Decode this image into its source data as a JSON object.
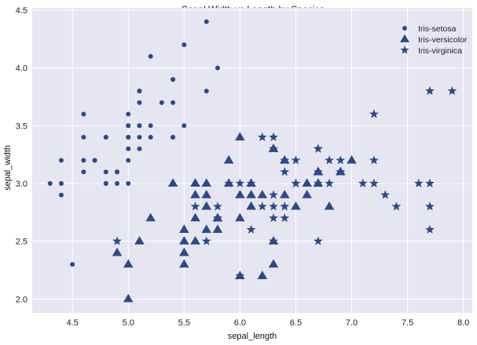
{
  "chart_data": {
    "type": "scatter",
    "title": "Sepal Width vs Length by Species",
    "xlabel": "sepal_length",
    "ylabel": "sepal_width",
    "xlim": [
      4.14,
      8.08
    ],
    "ylim": [
      1.88,
      4.52
    ],
    "xticks": [
      "4.5",
      "5.0",
      "5.5",
      "6.0",
      "6.5",
      "7.0",
      "7.5",
      "8.0"
    ],
    "xtick_values": [
      4.5,
      5.0,
      5.5,
      6.0,
      6.5,
      7.0,
      7.5,
      8.0
    ],
    "yticks": [
      "2.0",
      "2.5",
      "3.0",
      "3.5",
      "4.0",
      "4.5"
    ],
    "ytick_values": [
      2.0,
      2.5,
      3.0,
      3.5,
      4.0,
      4.5
    ],
    "grid": true,
    "legend_position": "top-right",
    "colors": {
      "marker": "#2a4a8a",
      "plot_background": "#e6e6f0",
      "grid": "#ffffff"
    },
    "series": [
      {
        "name": "Iris-setosa",
        "marker": "circle",
        "points": [
          [
            5.1,
            3.5
          ],
          [
            4.9,
            3.0
          ],
          [
            4.7,
            3.2
          ],
          [
            4.6,
            3.1
          ],
          [
            5.0,
            3.6
          ],
          [
            5.4,
            3.9
          ],
          [
            4.6,
            3.4
          ],
          [
            5.0,
            3.4
          ],
          [
            4.4,
            2.9
          ],
          [
            4.9,
            3.1
          ],
          [
            5.4,
            3.7
          ],
          [
            4.8,
            3.4
          ],
          [
            4.8,
            3.0
          ],
          [
            4.3,
            3.0
          ],
          [
            5.8,
            4.0
          ],
          [
            5.7,
            4.4
          ],
          [
            5.4,
            3.9
          ],
          [
            5.1,
            3.5
          ],
          [
            5.7,
            3.8
          ],
          [
            5.1,
            3.8
          ],
          [
            5.4,
            3.4
          ],
          [
            5.1,
            3.7
          ],
          [
            4.6,
            3.6
          ],
          [
            5.1,
            3.3
          ],
          [
            4.8,
            3.4
          ],
          [
            5.0,
            3.0
          ],
          [
            5.0,
            3.4
          ],
          [
            5.2,
            3.5
          ],
          [
            5.2,
            3.4
          ],
          [
            4.7,
            3.2
          ],
          [
            4.8,
            3.1
          ],
          [
            5.4,
            3.4
          ],
          [
            5.2,
            4.1
          ],
          [
            5.5,
            4.2
          ],
          [
            4.9,
            3.1
          ],
          [
            5.0,
            3.2
          ],
          [
            5.5,
            3.5
          ],
          [
            4.9,
            3.1
          ],
          [
            4.4,
            3.0
          ],
          [
            5.1,
            3.4
          ],
          [
            5.0,
            3.5
          ],
          [
            4.5,
            2.3
          ],
          [
            4.4,
            3.2
          ],
          [
            5.0,
            3.5
          ],
          [
            5.1,
            3.8
          ],
          [
            4.8,
            3.0
          ],
          [
            5.1,
            3.8
          ],
          [
            4.6,
            3.2
          ],
          [
            5.3,
            3.7
          ],
          [
            5.0,
            3.3
          ]
        ]
      },
      {
        "name": "Iris-versicolor",
        "marker": "triangle",
        "points": [
          [
            7.0,
            3.2
          ],
          [
            6.4,
            3.2
          ],
          [
            6.9,
            3.1
          ],
          [
            5.5,
            2.3
          ],
          [
            6.5,
            2.8
          ],
          [
            5.7,
            2.8
          ],
          [
            6.3,
            3.3
          ],
          [
            4.9,
            2.4
          ],
          [
            6.6,
            2.9
          ],
          [
            5.2,
            2.7
          ],
          [
            5.0,
            2.0
          ],
          [
            5.9,
            3.0
          ],
          [
            6.0,
            2.2
          ],
          [
            6.1,
            2.9
          ],
          [
            5.6,
            2.9
          ],
          [
            6.7,
            3.1
          ],
          [
            5.6,
            3.0
          ],
          [
            5.8,
            2.7
          ],
          [
            6.2,
            2.2
          ],
          [
            5.6,
            2.5
          ],
          [
            5.9,
            3.2
          ],
          [
            6.1,
            2.8
          ],
          [
            6.3,
            2.5
          ],
          [
            6.1,
            2.8
          ],
          [
            6.4,
            2.9
          ],
          [
            6.6,
            3.0
          ],
          [
            6.8,
            2.8
          ],
          [
            6.7,
            3.0
          ],
          [
            6.0,
            2.9
          ],
          [
            5.7,
            2.6
          ],
          [
            5.5,
            2.4
          ],
          [
            5.5,
            2.4
          ],
          [
            5.8,
            2.7
          ],
          [
            6.0,
            2.7
          ],
          [
            5.4,
            3.0
          ],
          [
            6.0,
            3.4
          ],
          [
            6.7,
            3.1
          ],
          [
            6.3,
            2.3
          ],
          [
            5.6,
            3.0
          ],
          [
            5.5,
            2.5
          ],
          [
            5.5,
            2.6
          ],
          [
            6.1,
            3.0
          ],
          [
            5.8,
            2.6
          ],
          [
            5.0,
            2.3
          ],
          [
            5.6,
            2.7
          ],
          [
            5.7,
            3.0
          ],
          [
            5.7,
            2.9
          ],
          [
            6.2,
            2.9
          ],
          [
            5.1,
            2.5
          ],
          [
            5.7,
            2.8
          ]
        ]
      },
      {
        "name": "Iris-virginica",
        "marker": "star",
        "points": [
          [
            6.3,
            3.3
          ],
          [
            5.8,
            2.7
          ],
          [
            7.1,
            3.0
          ],
          [
            6.3,
            2.9
          ],
          [
            6.5,
            3.0
          ],
          [
            7.6,
            3.0
          ],
          [
            4.9,
            2.5
          ],
          [
            7.3,
            2.9
          ],
          [
            6.7,
            2.5
          ],
          [
            7.2,
            3.6
          ],
          [
            6.5,
            3.2
          ],
          [
            6.4,
            2.7
          ],
          [
            6.8,
            3.0
          ],
          [
            5.7,
            2.5
          ],
          [
            5.8,
            2.8
          ],
          [
            6.4,
            3.2
          ],
          [
            6.5,
            3.0
          ],
          [
            7.7,
            3.8
          ],
          [
            7.7,
            2.6
          ],
          [
            6.0,
            2.2
          ],
          [
            6.9,
            3.2
          ],
          [
            5.6,
            2.8
          ],
          [
            7.7,
            2.8
          ],
          [
            6.3,
            2.7
          ],
          [
            6.7,
            3.3
          ],
          [
            7.2,
            3.2
          ],
          [
            6.2,
            2.8
          ],
          [
            6.1,
            3.0
          ],
          [
            6.4,
            2.8
          ],
          [
            7.2,
            3.0
          ],
          [
            7.4,
            2.8
          ],
          [
            7.9,
            3.8
          ],
          [
            6.4,
            2.8
          ],
          [
            6.3,
            2.8
          ],
          [
            6.1,
            2.6
          ],
          [
            7.7,
            3.0
          ],
          [
            6.3,
            3.4
          ],
          [
            6.4,
            3.1
          ],
          [
            6.0,
            3.0
          ],
          [
            6.9,
            3.1
          ],
          [
            6.7,
            3.1
          ],
          [
            6.9,
            3.1
          ],
          [
            5.8,
            2.7
          ],
          [
            6.8,
            3.2
          ],
          [
            6.7,
            3.3
          ],
          [
            6.7,
            3.0
          ],
          [
            6.3,
            2.5
          ],
          [
            6.5,
            3.0
          ],
          [
            6.2,
            3.4
          ],
          [
            5.9,
            3.0
          ]
        ]
      }
    ]
  }
}
